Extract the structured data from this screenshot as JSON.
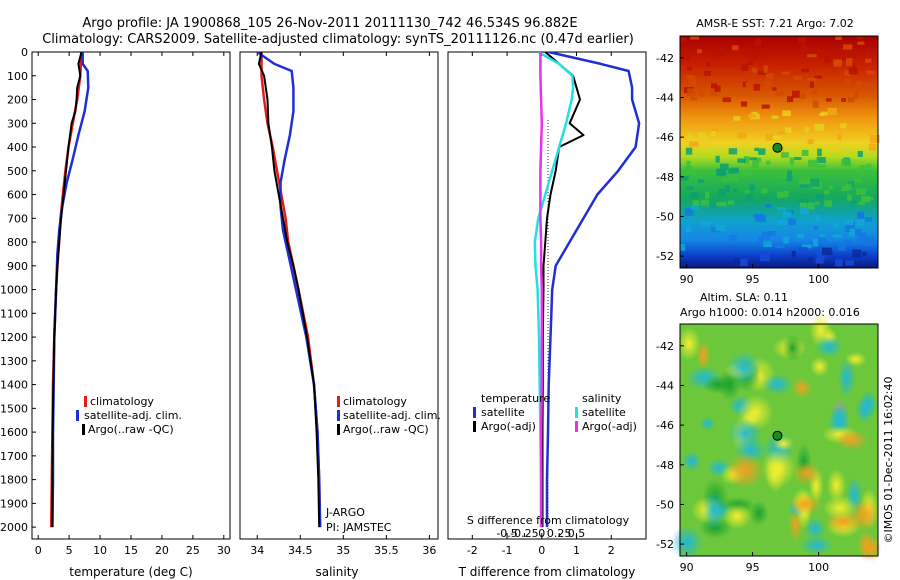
{
  "header": {
    "line1": "Argo profile: JA 1900868_105 26-Nov-2011 20111130_742 46.534S 96.882E",
    "line2": "Climatology: CARS2009. Satellite-adjusted climatology: synTS_20111126.nc (0.47d earlier)"
  },
  "footer": {
    "stamp": "©IMOS 01-Dec-2011 16:02:40"
  },
  "colors": {
    "climatology": "#e41a1c",
    "satellite": "#1f2fd6",
    "argo": "#000000",
    "sal_satellite": "#22e0e6",
    "sal_argo": "#e633e6",
    "marker": "#1a8c1a"
  },
  "chart_data": [
    {
      "type": "line",
      "xlabel": "temperature (deg C)",
      "ylabel": "",
      "xlim": [
        -1,
        31
      ],
      "ylim": [
        2050,
        0
      ],
      "xticks": [
        "0",
        "5",
        "10",
        "15",
        "20",
        "25",
        "30"
      ],
      "yticks": [
        "0",
        "100",
        "200",
        "300",
        "400",
        "500",
        "600",
        "700",
        "800",
        "900",
        "1000",
        "1100",
        "1200",
        "1300",
        "1400",
        "1500",
        "1600",
        "1700",
        "1800",
        "1900",
        "2000"
      ],
      "legend": [
        "climatology",
        "satellite-adj. clim.",
        "Argo(..raw -QC)"
      ],
      "series": [
        {
          "name": "climatology",
          "color": "climatology",
          "depth": [
            0,
            100,
            200,
            300,
            400,
            500,
            600,
            700,
            800,
            900,
            1000,
            1200,
            1400,
            1600,
            1800,
            2000
          ],
          "values": [
            7.0,
            6.8,
            6.3,
            5.6,
            4.9,
            4.4,
            4.0,
            3.6,
            3.4,
            3.1,
            2.9,
            2.6,
            2.4,
            2.3,
            2.2,
            2.1
          ]
        },
        {
          "name": "satellite-adj. clim.",
          "color": "satellite",
          "depth": [
            0,
            50,
            80,
            150,
            250,
            350,
            450,
            550,
            650,
            750,
            850,
            1000,
            1200,
            1400,
            1600,
            1800,
            2000
          ],
          "values": [
            7.2,
            7.2,
            8.0,
            8.1,
            7.5,
            6.5,
            5.6,
            4.6,
            3.9,
            3.4,
            3.1,
            2.9,
            2.6,
            2.5,
            2.4,
            2.4,
            2.3
          ]
        },
        {
          "name": "Argo(..raw -QC)",
          "color": "argo",
          "depth": [
            0,
            50,
            100,
            150,
            200,
            250,
            300,
            400,
            500,
            600,
            700,
            800,
            900,
            1000,
            1200,
            1400,
            1600,
            1800,
            2000
          ],
          "values": [
            7.0,
            6.5,
            6.8,
            6.3,
            6.2,
            6.0,
            5.4,
            4.9,
            4.5,
            4.1,
            3.7,
            3.4,
            3.1,
            2.9,
            2.6,
            2.45,
            2.35,
            2.3,
            2.3
          ]
        }
      ]
    },
    {
      "type": "line",
      "xlabel": "salinity",
      "ylabel": "",
      "xlim": [
        33.8,
        36.1
      ],
      "ylim": [
        2050,
        0
      ],
      "xticks": [
        "34",
        "34.5",
        "35",
        "35.5",
        "36"
      ],
      "legend": [
        "climatology",
        "satellite-adj. clim.",
        "Argo(..raw -QC)"
      ],
      "annotations": [
        "J-ARGO",
        "PI: JAMSTEC"
      ],
      "series": [
        {
          "name": "climatology",
          "color": "climatology",
          "depth": [
            0,
            100,
            200,
            300,
            400,
            500,
            600,
            700,
            800,
            900,
            1000,
            1200,
            1400,
            1600,
            1800,
            2000
          ],
          "values": [
            34.05,
            34.05,
            34.08,
            34.12,
            34.18,
            34.23,
            34.28,
            34.33,
            34.36,
            34.42,
            34.48,
            34.59,
            34.66,
            34.7,
            34.72,
            34.73
          ]
        },
        {
          "name": "satellite-adj. clim.",
          "color": "satellite",
          "depth": [
            0,
            50,
            80,
            150,
            250,
            350,
            450,
            550,
            650,
            750,
            850,
            1000,
            1200,
            1400,
            1600,
            1800,
            2000
          ],
          "values": [
            34.0,
            34.2,
            34.4,
            34.42,
            34.42,
            34.38,
            34.32,
            34.27,
            34.27,
            34.3,
            34.36,
            34.45,
            34.57,
            34.66,
            34.7,
            34.72,
            34.73
          ]
        },
        {
          "name": "Argo(..raw -QC)",
          "color": "argo",
          "depth": [
            0,
            50,
            100,
            150,
            200,
            300,
            400,
            500,
            600,
            700,
            800,
            900,
            1000,
            1200,
            1400,
            1600,
            1800,
            2000
          ],
          "values": [
            34.05,
            34.02,
            34.08,
            34.1,
            34.12,
            34.13,
            34.17,
            34.2,
            34.25,
            34.3,
            34.35,
            34.42,
            34.48,
            34.58,
            34.66,
            34.69,
            34.71,
            34.72
          ]
        }
      ]
    },
    {
      "type": "line",
      "xlabel": "T difference from climatology",
      "secondary_xlabel": "S difference from climatology",
      "xlim": [
        -2.7,
        3.0
      ],
      "ylim": [
        2050,
        0
      ],
      "xticks": [
        "-2",
        "-1",
        "0",
        "1",
        "2"
      ],
      "secondary_xticks": [
        "-0.5",
        "-0.25",
        "0",
        "0.25",
        "0.5"
      ],
      "legend_groups": [
        {
          "title": "temperature",
          "items": [
            "satellite",
            "Argo(-adj)"
          ]
        },
        {
          "title": "salinity",
          "items": [
            "satellite",
            "Argo(-adj)"
          ]
        }
      ],
      "series": [
        {
          "name": "satellite",
          "group": "temperature",
          "color": "satellite",
          "depth": [
            0,
            50,
            80,
            150,
            200,
            300,
            400,
            500,
            600,
            700,
            800,
            900,
            1000,
            1200,
            1400,
            1600,
            1800,
            2000
          ],
          "values": [
            0.2,
            1.7,
            2.5,
            2.6,
            2.6,
            2.8,
            2.7,
            2.2,
            1.6,
            1.2,
            0.8,
            0.4,
            0.3,
            0.25,
            0.2,
            0.18,
            0.15,
            0.15
          ]
        },
        {
          "name": "Argo(-adj)",
          "group": "temperature",
          "color": "argo",
          "depth": [
            0,
            100,
            200,
            300,
            350,
            400,
            500,
            600,
            700,
            800,
            900,
            1000,
            1200,
            1400,
            1600,
            1800,
            2000
          ],
          "values": [
            0.1,
            0.9,
            1.1,
            0.8,
            1.2,
            0.5,
            0.4,
            0.25,
            0.15,
            0.1,
            0.05,
            0.05,
            0.03,
            0.03,
            0.02,
            0.02,
            0.02
          ]
        },
        {
          "name": "satellite",
          "group": "salinity",
          "color": "sal_satellite",
          "depth": [
            0,
            50,
            100,
            150,
            200,
            300,
            400,
            500,
            600,
            700,
            800,
            900,
            1000,
            1200,
            1400,
            1600,
            1800,
            2000
          ],
          "values": [
            -0.05,
            0.25,
            0.44,
            0.45,
            0.43,
            0.35,
            0.25,
            0.15,
            0.05,
            -0.05,
            -0.1,
            -0.09,
            -0.06,
            -0.04,
            -0.03,
            -0.02,
            -0.01,
            -0.01
          ]
        },
        {
          "name": "Argo(-adj)",
          "group": "salinity",
          "color": "sal_argo",
          "depth": [
            0,
            100,
            200,
            300,
            400,
            500,
            600,
            700,
            800,
            900,
            1000,
            1200,
            1400,
            1600,
            1800,
            2000
          ],
          "values": [
            -0.02,
            -0.02,
            -0.01,
            0.0,
            -0.01,
            -0.02,
            -0.02,
            -0.02,
            -0.01,
            -0.01,
            0.0,
            0.0,
            0.0,
            -0.01,
            -0.01,
            -0.01
          ]
        }
      ]
    },
    {
      "type": "heatmap",
      "title": "AMSR-E SST: 7.21  Argo: 7.02",
      "xticks": [
        "90",
        "95",
        "100"
      ],
      "yticks": [
        "-42",
        "-44",
        "-46",
        "-48",
        "-50",
        "-52"
      ],
      "xlim": [
        89.5,
        104.5
      ],
      "ylim": [
        -52.6,
        -40.9
      ],
      "marker": {
        "lon": 96.882,
        "lat": -46.534
      }
    },
    {
      "type": "heatmap",
      "title": "Altim. SLA: 0.11",
      "subtitle": "Argo h1000: 0.014 h2000: 0.016",
      "xticks": [
        "90",
        "95",
        "100"
      ],
      "yticks": [
        "-42",
        "-44",
        "-46",
        "-48",
        "-50",
        "-52"
      ],
      "xlim": [
        89.5,
        104.5
      ],
      "ylim": [
        -52.6,
        -40.9
      ],
      "marker": {
        "lon": 96.882,
        "lat": -46.534
      }
    }
  ]
}
